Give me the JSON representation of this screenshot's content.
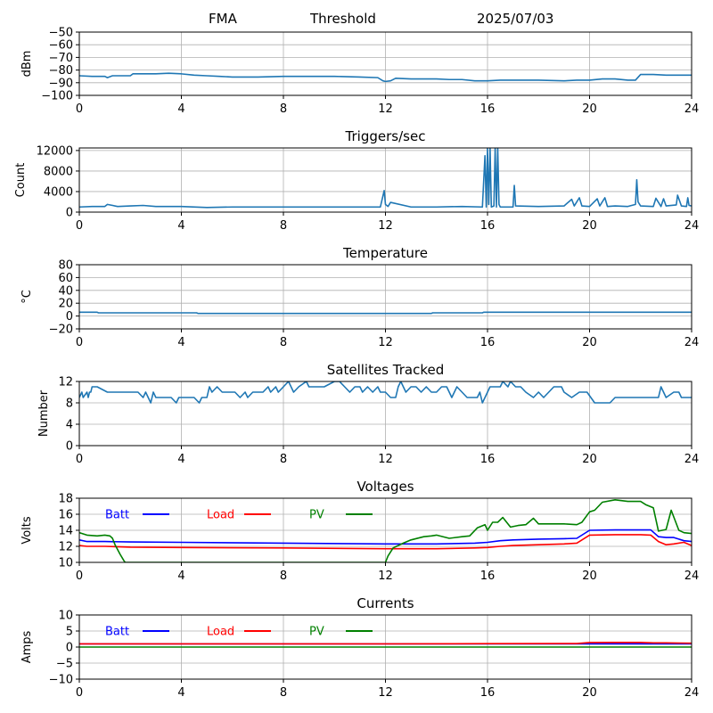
{
  "header": {
    "station": "FMA",
    "mode": "Threshold",
    "date": "2025/07/03"
  },
  "colors": {
    "series": "#1f77b4",
    "batt": "#0000ff",
    "load": "#ff0000",
    "pv": "#008000",
    "grid": "#b0b0b0"
  },
  "chart_data": [
    {
      "type": "line",
      "title": "",
      "ylabel": "dBm",
      "xlim": [
        0,
        24
      ],
      "ylim": [
        -100,
        -50
      ],
      "xticks": [
        0,
        4,
        8,
        12,
        16,
        20,
        24
      ],
      "yticks": [
        -100,
        -90,
        -80,
        -70,
        -60,
        -50
      ],
      "grid": true,
      "series": [
        {
          "color": "#1f77b4",
          "x": [
            0,
            0.5,
            1.0,
            1.1,
            1.3,
            1.5,
            2.0,
            2.1,
            3.0,
            3.5,
            4.0,
            4.5,
            5.0,
            5.5,
            6.0,
            7.0,
            8.0,
            9.0,
            10.0,
            11.0,
            11.7,
            11.9,
            12.0,
            12.2,
            12.4,
            13.0,
            14.0,
            14.5,
            15.0,
            15.5,
            16.0,
            16.5,
            17.0,
            18.0,
            19.0,
            19.5,
            20.0,
            20.5,
            21.0,
            21.5,
            21.8,
            22.0,
            22.5,
            23.0,
            23.5,
            24.0
          ],
          "y": [
            -84.5,
            -85,
            -85,
            -86,
            -84.5,
            -84.5,
            -84.5,
            -83,
            -83,
            -82.5,
            -83,
            -84,
            -84.5,
            -85,
            -85.5,
            -85.5,
            -85,
            -85,
            -85,
            -85.5,
            -86,
            -88.5,
            -89,
            -88.5,
            -86.5,
            -87,
            -87,
            -87.5,
            -87.5,
            -88.5,
            -88.5,
            -88,
            -88,
            -88,
            -88.5,
            -88,
            -88,
            -87,
            -87,
            -88,
            -88,
            -83.5,
            -83.5,
            -84,
            -84,
            -84
          ]
        }
      ]
    },
    {
      "type": "line",
      "title": "Triggers/sec",
      "ylabel": "Count",
      "xlim": [
        0,
        24
      ],
      "ylim": [
        0,
        12500
      ],
      "xticks": [
        0,
        4,
        8,
        12,
        16,
        20,
        24
      ],
      "yticks": [
        0,
        4000,
        8000,
        12000
      ],
      "grid": true,
      "series": [
        {
          "color": "#1f77b4",
          "x": [
            0,
            0.5,
            1.0,
            1.1,
            1.5,
            2.0,
            2.5,
            3.0,
            4.0,
            5.0,
            6.0,
            7.0,
            8.0,
            9.0,
            10.0,
            11.0,
            11.8,
            11.95,
            12.0,
            12.1,
            12.2,
            13.0,
            14.0,
            15.0,
            15.8,
            15.9,
            15.95,
            16.0,
            16.05,
            16.1,
            16.15,
            16.25,
            16.3,
            16.35,
            16.4,
            16.45,
            16.5,
            17.0,
            17.05,
            17.1,
            18.0,
            19.0,
            19.3,
            19.4,
            19.6,
            19.7,
            20.0,
            20.3,
            20.4,
            20.6,
            20.7,
            21.0,
            21.5,
            21.8,
            21.85,
            21.9,
            22.0,
            22.5,
            22.6,
            22.8,
            22.9,
            23.0,
            23.4,
            23.45,
            23.6,
            23.8,
            23.85,
            23.9,
            24.0
          ],
          "y": [
            1000,
            1100,
            1100,
            1500,
            1100,
            1200,
            1300,
            1100,
            1100,
            900,
            1000,
            1000,
            1000,
            1000,
            1000,
            1000,
            1000,
            4200,
            1500,
            1100,
            1900,
            1000,
            1000,
            1100,
            1000,
            11000,
            1000,
            12500,
            1500,
            12500,
            1000,
            1200,
            12500,
            1000,
            12500,
            1500,
            1000,
            1000,
            5200,
            1200,
            1100,
            1200,
            2500,
            1200,
            2800,
            1200,
            1100,
            2600,
            1200,
            2800,
            1100,
            1200,
            1100,
            1500,
            6300,
            2000,
            1200,
            1100,
            2700,
            1100,
            2600,
            1200,
            1400,
            3300,
            1200,
            1100,
            2800,
            1300,
            1200
          ]
        }
      ]
    },
    {
      "type": "line",
      "title": "Temperature",
      "ylabel": "°C",
      "xlim": [
        0,
        24
      ],
      "ylim": [
        -20,
        80
      ],
      "xticks": [
        0,
        4,
        8,
        12,
        16,
        20,
        24
      ],
      "yticks": [
        -20,
        0,
        20,
        40,
        60,
        80
      ],
      "grid": true,
      "series": [
        {
          "color": "#1f77b4",
          "x": [
            0,
            0.7,
            0.75,
            4.6,
            4.65,
            13.8,
            13.85,
            15.8,
            15.85,
            24
          ],
          "y": [
            6,
            6,
            5,
            5,
            4,
            4,
            5,
            5,
            6,
            6
          ]
        }
      ]
    },
    {
      "type": "line",
      "title": "Satellites Tracked",
      "ylabel": "Number",
      "xlim": [
        0,
        24
      ],
      "ylim": [
        0,
        12
      ],
      "xticks": [
        0,
        4,
        8,
        12,
        16,
        20,
        24
      ],
      "yticks": [
        0,
        4,
        8,
        12
      ],
      "grid": true,
      "series": [
        {
          "color": "#1f77b4",
          "x": [
            0,
            0.1,
            0.15,
            0.3,
            0.35,
            0.4,
            0.45,
            0.5,
            0.7,
            1.1,
            1.2,
            1.3,
            1.5,
            2.3,
            2.5,
            2.6,
            2.8,
            2.9,
            3.0,
            3.1,
            3.3,
            3.6,
            3.8,
            3.9,
            4.2,
            4.5,
            4.7,
            4.8,
            5.0,
            5.1,
            5.2,
            5.4,
            5.6,
            5.9,
            6.1,
            6.3,
            6.5,
            6.6,
            6.8,
            7.0,
            7.2,
            7.4,
            7.5,
            7.7,
            7.8,
            8.0,
            8.2,
            8.4,
            8.6,
            8.9,
            9.0,
            9.4,
            9.6,
            10.0,
            10.2,
            10.4,
            10.6,
            10.8,
            11.0,
            11.1,
            11.3,
            11.5,
            11.7,
            11.8,
            12.0,
            12.2,
            12.4,
            12.5,
            12.6,
            12.7,
            12.8,
            13.0,
            13.2,
            13.4,
            13.6,
            13.8,
            14.0,
            14.2,
            14.4,
            14.6,
            14.8,
            15.0,
            15.2,
            15.4,
            15.6,
            15.7,
            15.8,
            15.9,
            16.1,
            16.3,
            16.5,
            16.6,
            16.8,
            16.9,
            17.1,
            17.3,
            17.5,
            17.8,
            18.0,
            18.2,
            18.4,
            18.6,
            18.9,
            19.0,
            19.3,
            19.6,
            19.9,
            20.2,
            20.5,
            20.8,
            21.0,
            21.2,
            21.5,
            21.7,
            22.0,
            22.5,
            22.7,
            22.8,
            23.0,
            23.3,
            23.5,
            23.6,
            24.0
          ],
          "y": [
            9,
            10,
            9,
            10,
            9,
            10,
            10,
            11,
            11,
            10,
            10,
            10,
            10,
            10,
            9,
            10,
            8,
            10,
            9,
            9,
            9,
            9,
            8,
            9,
            9,
            9,
            8,
            9,
            9,
            11,
            10,
            11,
            10,
            10,
            10,
            9,
            10,
            9,
            10,
            10,
            10,
            11,
            10,
            11,
            10,
            11,
            12,
            10,
            11,
            12,
            11,
            11,
            11,
            12,
            12,
            11,
            10,
            11,
            11,
            10,
            11,
            10,
            11,
            10,
            10,
            9,
            9,
            11,
            12,
            11,
            10,
            11,
            11,
            10,
            11,
            10,
            10,
            11,
            11,
            9,
            11,
            10,
            9,
            9,
            9,
            10,
            8,
            9,
            11,
            11,
            11,
            12,
            11,
            12,
            11,
            11,
            10,
            9,
            10,
            9,
            10,
            11,
            11,
            10,
            9,
            10,
            10,
            8,
            8,
            8,
            9,
            9,
            9,
            9,
            9,
            9,
            9,
            11,
            9,
            10,
            10,
            9,
            9
          ]
        }
      ]
    },
    {
      "type": "line",
      "title": "Voltages",
      "ylabel": "Volts",
      "xlim": [
        0,
        24
      ],
      "ylim": [
        10,
        18
      ],
      "xticks": [
        0,
        4,
        8,
        12,
        16,
        20,
        24
      ],
      "yticks": [
        10,
        12,
        14,
        16,
        18
      ],
      "grid": true,
      "legend": "top-left",
      "series": [
        {
          "name": "Batt",
          "color": "#0000ff",
          "x": [
            0,
            0.3,
            1.0,
            2.0,
            4.0,
            8.0,
            12.0,
            14.0,
            15.5,
            16.0,
            16.5,
            17.0,
            18.0,
            19.0,
            19.5,
            20.0,
            21.0,
            22.0,
            22.4,
            22.7,
            23.0,
            23.3,
            23.7,
            24.0
          ],
          "y": [
            12.8,
            12.6,
            12.6,
            12.55,
            12.5,
            12.4,
            12.3,
            12.3,
            12.4,
            12.5,
            12.7,
            12.8,
            12.9,
            12.95,
            13.0,
            14.0,
            14.05,
            14.05,
            14.05,
            13.2,
            13.1,
            13.1,
            12.7,
            12.6
          ]
        },
        {
          "name": "Load",
          "color": "#ff0000",
          "x": [
            0,
            0.3,
            1.0,
            2.0,
            4.0,
            8.0,
            12.0,
            14.0,
            15.5,
            16.0,
            16.5,
            17.0,
            18.0,
            19.0,
            19.5,
            20.0,
            21.0,
            22.0,
            22.4,
            22.7,
            23.0,
            23.3,
            23.7,
            24.0
          ],
          "y": [
            12.1,
            12.0,
            12.0,
            11.9,
            11.85,
            11.8,
            11.7,
            11.7,
            11.8,
            11.85,
            12.0,
            12.1,
            12.2,
            12.3,
            12.4,
            13.4,
            13.45,
            13.45,
            13.4,
            12.6,
            12.2,
            12.3,
            12.5,
            12.1
          ]
        },
        {
          "name": "PV",
          "color": "#008000",
          "x": [
            0,
            0.3,
            0.7,
            1.0,
            1.2,
            1.3,
            1.4,
            1.6,
            1.75,
            1.8,
            12.0,
            12.1,
            12.3,
            12.7,
            13.0,
            13.5,
            13.8,
            14.0,
            14.5,
            15.0,
            15.3,
            15.6,
            15.9,
            16.0,
            16.2,
            16.4,
            16.6,
            16.9,
            17.2,
            17.5,
            17.8,
            18.0,
            18.5,
            19.0,
            19.5,
            19.7,
            20.0,
            20.2,
            20.5,
            21.0,
            21.5,
            22.0,
            22.2,
            22.5,
            22.7,
            23.0,
            23.2,
            23.5,
            23.7,
            24.0
          ],
          "y": [
            13.7,
            13.4,
            13.3,
            13.4,
            13.3,
            13.0,
            12.2,
            11.0,
            10.2,
            10.0,
            10.0,
            10.8,
            11.8,
            12.4,
            12.8,
            13.2,
            13.3,
            13.4,
            13.0,
            13.2,
            13.3,
            14.3,
            14.7,
            14.0,
            15.0,
            15.0,
            15.6,
            14.4,
            14.6,
            14.7,
            15.5,
            14.8,
            14.8,
            14.8,
            14.7,
            15.0,
            16.3,
            16.5,
            17.5,
            17.8,
            17.6,
            17.6,
            17.2,
            16.8,
            13.9,
            14.1,
            16.5,
            14.0,
            13.7,
            13.6
          ]
        }
      ]
    },
    {
      "type": "line",
      "title": "Currents",
      "ylabel": "Amps",
      "xlim": [
        0,
        24
      ],
      "ylim": [
        -10,
        10
      ],
      "xticks": [
        0,
        4,
        8,
        12,
        16,
        20,
        24
      ],
      "yticks": [
        -10,
        -5,
        0,
        5,
        10
      ],
      "grid": true,
      "legend": "top-left",
      "series": [
        {
          "name": "Batt",
          "color": "#0000ff",
          "x": [
            0,
            24
          ],
          "y": [
            1.0,
            1.0
          ]
        },
        {
          "name": "Load",
          "color": "#ff0000",
          "x": [
            0,
            12,
            16,
            19.5,
            20,
            21,
            22,
            22.5,
            23,
            24
          ],
          "y": [
            1.0,
            1.0,
            1.05,
            1.1,
            1.4,
            1.45,
            1.45,
            1.3,
            1.3,
            1.2
          ]
        },
        {
          "name": "PV",
          "color": "#008000",
          "x": [
            0,
            24
          ],
          "y": [
            0.0,
            0.0
          ]
        }
      ]
    }
  ]
}
